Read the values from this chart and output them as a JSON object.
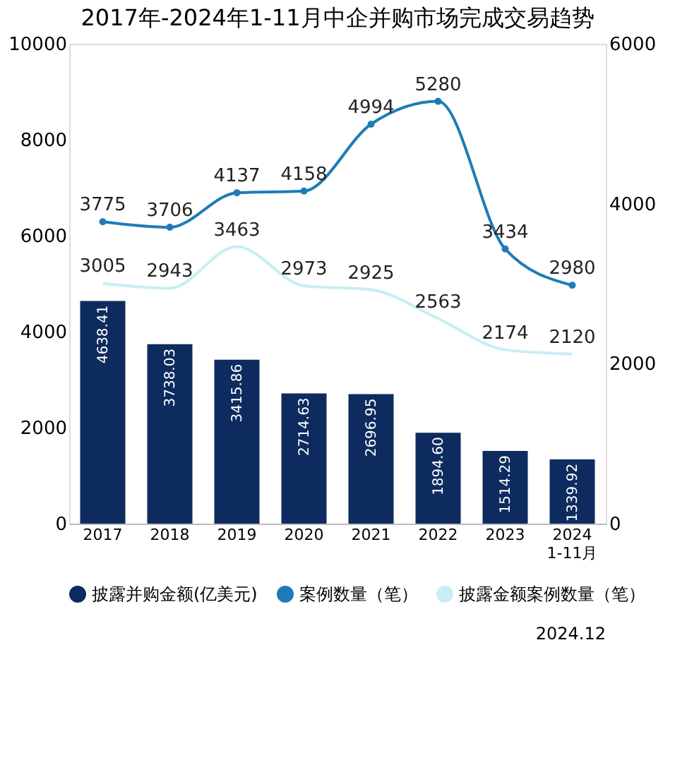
{
  "chart_data": {
    "type": "bar",
    "title": "2017年-2024年1-11月中企并购市场完成交易趋势",
    "categories": [
      "2017",
      "2018",
      "2019",
      "2020",
      "2021",
      "2022",
      "2023",
      "2024\n1-11月"
    ],
    "series": [
      {
        "name": "披露并购金额(亿美元)",
        "color": "#0d2b5e",
        "values": [
          4638.41,
          3738.03,
          3415.86,
          2714.63,
          2696.95,
          1894.6,
          1514.29,
          1339.92
        ],
        "value_labels": [
          "4638.41",
          "3738.03",
          "3415.86",
          "2714.63",
          "2696.95",
          "1894.60",
          "1514.29",
          "1339.92"
        ]
      },
      {
        "name": "案例数量（笔）",
        "type": "line",
        "axis": "y2",
        "color": "#1f7bb8",
        "marker": "circle",
        "values": [
          3775,
          3706,
          4137,
          4158,
          4994,
          5280,
          3434,
          2980
        ]
      },
      {
        "name": "披露金额案例数量（笔）",
        "type": "line",
        "axis": "y2",
        "color": "#c8eef4",
        "values": [
          3005,
          2943,
          3463,
          2973,
          2925,
          2563,
          2174,
          2120
        ]
      }
    ],
    "ylim": [
      0,
      10000
    ],
    "yticks": [
      0,
      2000,
      4000,
      6000,
      8000,
      10000
    ],
    "y2lim": [
      0,
      6000
    ],
    "y2ticks": [
      0,
      2000,
      4000,
      6000
    ],
    "data_labels": true,
    "grid": false,
    "legend": "bottom",
    "annotations": [
      "2024.12"
    ]
  }
}
